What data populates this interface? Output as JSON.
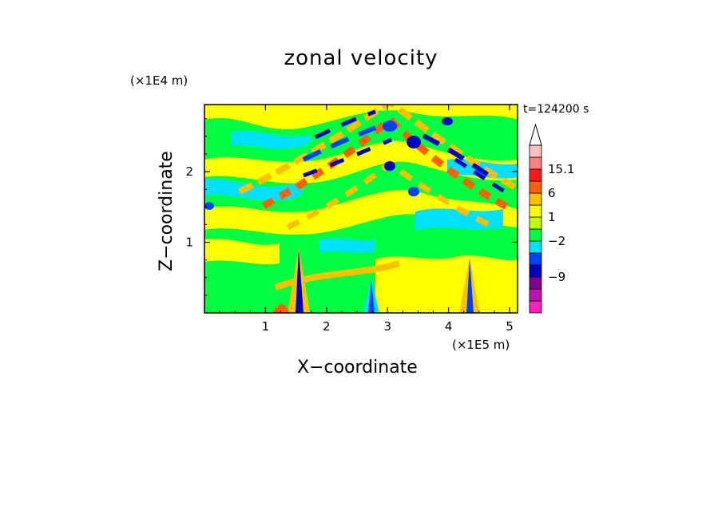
{
  "chart_data": {
    "type": "heatmap",
    "title": "zonal velocity",
    "xlabel": "X−coordinate",
    "ylabel": "Z−coordinate",
    "x_multiplier": "(×1E5 m)",
    "y_multiplier": "(×1E4 m)",
    "annotation": "t=124200 s",
    "xlim": [
      0,
      5.13
    ],
    "ylim": [
      0,
      2.95
    ],
    "x_ticks": [
      1,
      2,
      3,
      4,
      5
    ],
    "y_ticks": [
      1,
      2
    ],
    "colorbar": {
      "extend_max": true,
      "colors": [
        "#ff20c0",
        "#c010b0",
        "#800090",
        "#0000c0",
        "#0040ff",
        "#00e0ff",
        "#00ff40",
        "#c0ff00",
        "#ffff00",
        "#ffc000",
        "#ff6000",
        "#ff1818",
        "#ff8080",
        "#ffc0c0",
        "#ffffff"
      ],
      "labels": [
        {
          "text": "15.1",
          "level": 12
        },
        {
          "text": "6",
          "level": 10
        },
        {
          "text": "1",
          "level": 8
        },
        {
          "text": "−2",
          "level": 6
        },
        {
          "text": "−9",
          "level": 3
        }
      ]
    }
  }
}
